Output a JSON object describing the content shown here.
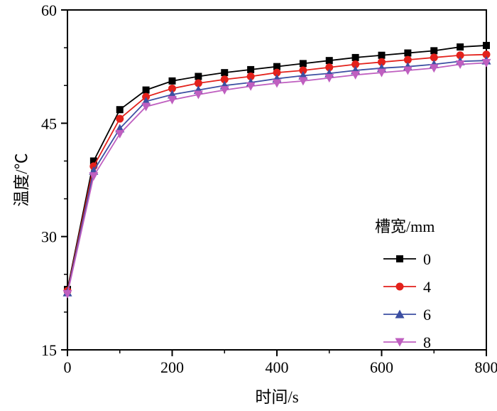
{
  "chart_data": {
    "type": "line",
    "title": "",
    "xlabel": "时间/s",
    "ylabel": "温度/℃",
    "xlim": [
      0,
      800
    ],
    "ylim": [
      15,
      60
    ],
    "xticks": [
      0,
      200,
      400,
      600,
      800
    ],
    "yticks": [
      15,
      30,
      45,
      60
    ],
    "x_minor_step": 100,
    "y_minor_step": 5,
    "grid": false,
    "legend_title": "槽宽/mm",
    "legend_position": "bottom-right",
    "x": [
      0,
      50,
      100,
      150,
      200,
      250,
      300,
      350,
      400,
      450,
      500,
      550,
      600,
      650,
      700,
      750,
      800
    ],
    "series": [
      {
        "name": "0",
        "color": "#000000",
        "marker": "square",
        "values": [
          23.0,
          40.0,
          46.8,
          49.4,
          50.6,
          51.2,
          51.7,
          52.1,
          52.5,
          52.9,
          53.3,
          53.7,
          54.0,
          54.3,
          54.6,
          55.1,
          55.3
        ]
      },
      {
        "name": "4",
        "color": "#e3211b",
        "marker": "circle",
        "values": [
          22.8,
          39.3,
          45.6,
          48.5,
          49.6,
          50.3,
          50.8,
          51.2,
          51.7,
          52.0,
          52.4,
          52.8,
          53.1,
          53.4,
          53.7,
          54.0,
          54.1
        ]
      },
      {
        "name": "6",
        "color": "#3c4fa2",
        "marker": "triangle-up",
        "values": [
          22.6,
          38.7,
          44.3,
          47.9,
          48.8,
          49.4,
          50.0,
          50.4,
          50.9,
          51.3,
          51.6,
          52.0,
          52.3,
          52.5,
          52.8,
          53.2,
          53.3
        ]
      },
      {
        "name": "8",
        "color": "#bf5fc0",
        "marker": "triangle-down",
        "values": [
          22.4,
          38.0,
          43.6,
          47.2,
          48.1,
          48.8,
          49.4,
          49.9,
          50.3,
          50.6,
          51.0,
          51.4,
          51.7,
          52.0,
          52.3,
          52.8,
          53.0
        ]
      }
    ]
  }
}
